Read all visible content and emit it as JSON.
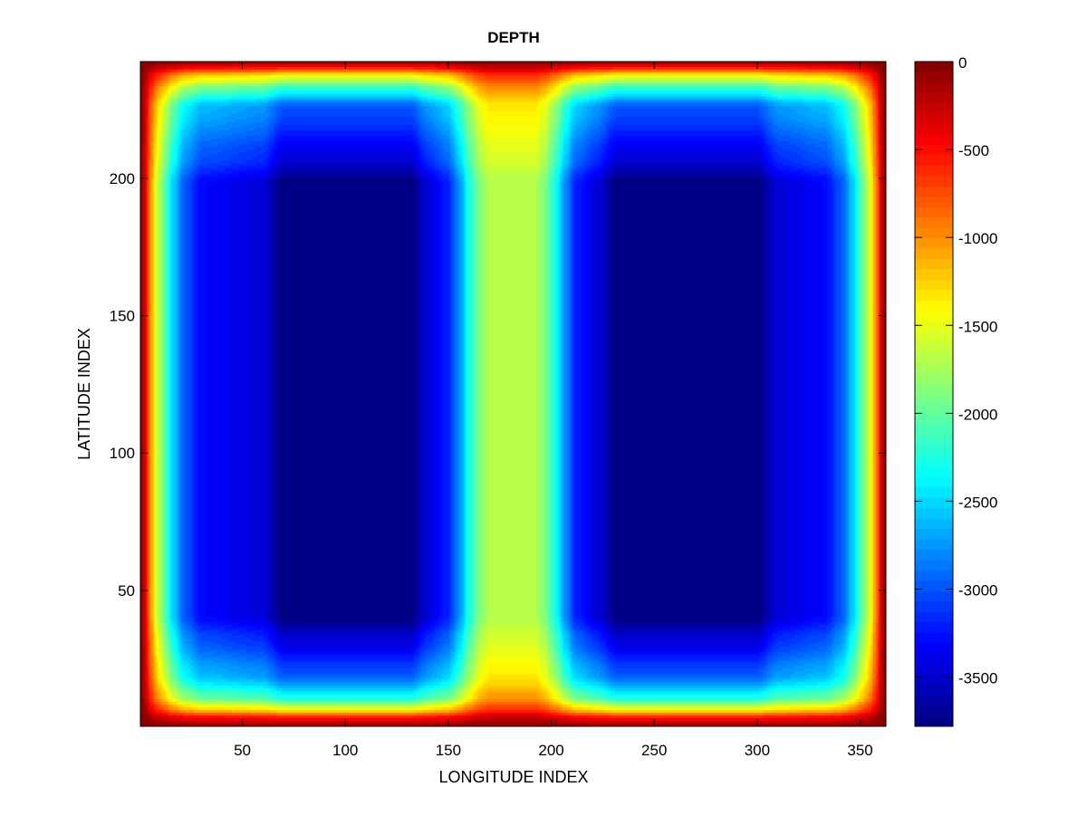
{
  "chart_data": {
    "type": "heatmap",
    "title": "DEPTH",
    "xlabel": "LONGITUDE INDEX",
    "ylabel": "LATITUDE INDEX",
    "xlim": [
      0.5,
      362.5
    ],
    "ylim": [
      0.5,
      242.5
    ],
    "xticks": [
      50,
      100,
      150,
      200,
      250,
      300,
      350
    ],
    "yticks": [
      50,
      100,
      150,
      200
    ],
    "colormap": "jet",
    "colormap_levels": 64,
    "clim": [
      -3780,
      0
    ],
    "colorbar_ticks": [
      0,
      -500,
      -1000,
      -1500,
      -2000,
      -2500,
      -3000,
      -3500
    ],
    "colorbar_location": "right",
    "grid": false,
    "depth_profile_along_longitude_at_latitude_120": {
      "x": [
        1,
        3,
        5,
        8,
        12,
        16,
        22,
        30,
        60,
        70,
        132,
        140,
        150,
        155,
        160,
        165,
        170,
        192,
        197,
        202,
        207,
        212,
        222,
        232,
        300,
        310,
        333,
        341,
        347,
        351,
        355,
        358,
        360,
        362
      ],
      "depth": [
        0,
        -400,
        -900,
        -1500,
        -2000,
        -2500,
        -3000,
        -3300,
        -3450,
        -3780,
        -3780,
        -3450,
        -3200,
        -2800,
        -2300,
        -1900,
        -1700,
        -1700,
        -1900,
        -2300,
        -2800,
        -3200,
        -3450,
        -3780,
        -3780,
        -3450,
        -3300,
        -3000,
        -2500,
        -2000,
        -1500,
        -900,
        -400,
        0
      ]
    },
    "depth_profile_along_latitude_at_longitude_100": {
      "y": [
        1,
        3.5,
        7,
        11,
        19,
        32,
        41,
        198,
        207,
        226,
        232,
        237,
        240.5,
        242
      ],
      "depth": [
        -150,
        -500,
        -1500,
        -2300,
        -3000,
        -3450,
        -3780,
        -3780,
        -3450,
        -3000,
        -2300,
        -1500,
        -500,
        -150
      ]
    }
  }
}
